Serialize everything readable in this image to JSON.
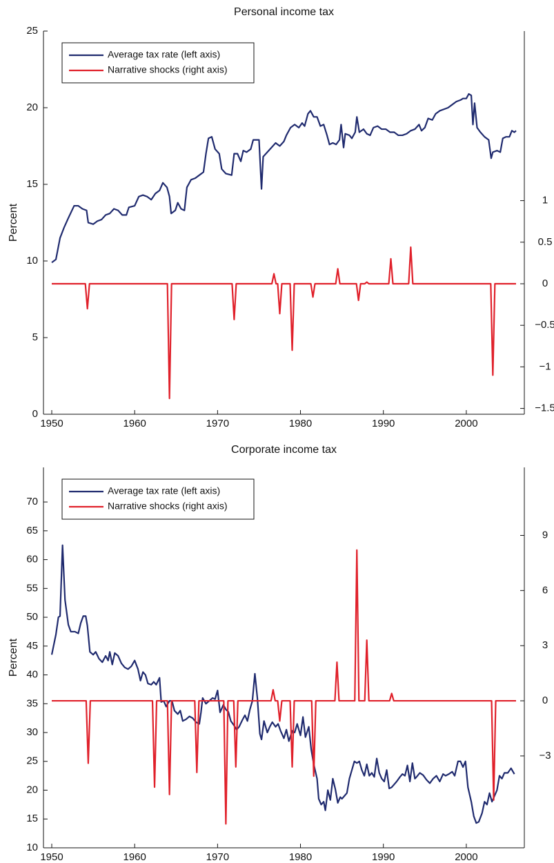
{
  "chart_data": [
    {
      "type": "line",
      "title": "Personal income tax",
      "y_label": "Percent",
      "legend": "upper left",
      "xlim": [
        1949,
        2007
      ],
      "xticks": [
        1950,
        1960,
        1970,
        1980,
        1990,
        2000
      ],
      "ylim": [
        0,
        25
      ],
      "yticks": [
        0,
        5,
        10,
        15,
        20,
        25
      ],
      "y2lim": [
        -1.57,
        3.04
      ],
      "y2ticks": [
        {
          "value": -1.5,
          "label": "−1.5"
        },
        {
          "value": -1,
          "label": "−1"
        },
        {
          "value": -0.5,
          "label": "−0.5"
        },
        0,
        0.5,
        1
      ],
      "series": [
        {
          "name": "Average tax rate (left axis)",
          "color": "#1f2a6e",
          "axis": "y",
          "x": [
            1950,
            1950.5,
            1951,
            1951.5,
            1952,
            1952.7,
            1953.2,
            1953.7,
            1954.2,
            1954.4,
            1955,
            1955.5,
            1956,
            1956.5,
            1957,
            1957.5,
            1958,
            1958.5,
            1959,
            1959.3,
            1960,
            1960.5,
            1961,
            1961.5,
            1962,
            1962.5,
            1963,
            1963.4,
            1963.9,
            1964.2,
            1964.4,
            1964.9,
            1965.2,
            1965.6,
            1966,
            1966.3,
            1966.8,
            1967.3,
            1967.8,
            1968.3,
            1968.6,
            1968.9,
            1969.3,
            1969.7,
            1970.2,
            1970.5,
            1971,
            1971.7,
            1972,
            1972.4,
            1972.8,
            1973.1,
            1973.5,
            1974,
            1974.3,
            1975,
            1975.3,
            1975.5,
            1976,
            1976.5,
            1977,
            1977.5,
            1978,
            1978.3,
            1978.8,
            1979.3,
            1979.8,
            1980.2,
            1980.5,
            1980.9,
            1981.2,
            1981.6,
            1982,
            1982.4,
            1982.8,
            1983.2,
            1983.5,
            1983.9,
            1984.3,
            1984.7,
            1984.9,
            1985.2,
            1985.4,
            1985.9,
            1986.2,
            1986.6,
            1986.8,
            1987.1,
            1987.6,
            1988,
            1988.4,
            1988.8,
            1989.3,
            1989.8,
            1990.3,
            1990.8,
            1991.3,
            1991.8,
            1992.3,
            1992.8,
            1993.3,
            1993.8,
            1994.3,
            1994.6,
            1995,
            1995.4,
            1995.9,
            1996.3,
            1996.8,
            1997.3,
            1997.8,
            1998.3,
            1998.8,
            1999.3,
            1999.6,
            2000,
            2000.3,
            2000.6,
            2000.8,
            2001,
            2001.3,
            2001.7,
            2002.2,
            2002.7,
            2003,
            2003.2,
            2003.7,
            2004.1,
            2004.4,
            2004.8,
            2005.2,
            2005.5,
            2005.8,
            2006
          ],
          "values": [
            9.9,
            10.1,
            11.5,
            12.2,
            12.8,
            13.6,
            13.6,
            13.4,
            13.3,
            12.5,
            12.4,
            12.6,
            12.7,
            13.0,
            13.1,
            13.4,
            13.3,
            13.0,
            13.0,
            13.5,
            13.6,
            14.2,
            14.3,
            14.2,
            14.0,
            14.4,
            14.6,
            15.1,
            14.8,
            14.2,
            13.1,
            13.3,
            13.8,
            13.4,
            13.3,
            14.8,
            15.3,
            15.4,
            15.6,
            15.8,
            17.0,
            18.0,
            18.1,
            17.3,
            17.0,
            16.0,
            15.7,
            15.6,
            17.0,
            17.0,
            16.5,
            17.2,
            17.1,
            17.3,
            17.9,
            17.9,
            14.7,
            16.8,
            17.1,
            17.4,
            17.7,
            17.5,
            17.8,
            18.2,
            18.7,
            18.9,
            18.7,
            19.0,
            18.8,
            19.6,
            19.8,
            19.4,
            19.4,
            18.8,
            18.9,
            18.2,
            17.6,
            17.7,
            17.6,
            17.9,
            18.9,
            17.4,
            18.3,
            18.2,
            18.0,
            18.4,
            19.4,
            18.4,
            18.6,
            18.3,
            18.2,
            18.7,
            18.8,
            18.6,
            18.6,
            18.4,
            18.4,
            18.2,
            18.2,
            18.3,
            18.5,
            18.6,
            18.9,
            18.5,
            18.7,
            19.3,
            19.2,
            19.6,
            19.8,
            19.9,
            20.0,
            20.2,
            20.4,
            20.5,
            20.6,
            20.6,
            20.9,
            20.8,
            18.9,
            20.3,
            18.7,
            18.4,
            18.1,
            17.9,
            16.7,
            17.1,
            17.2,
            17.1,
            18.0,
            18.1,
            18.1,
            18.5,
            18.4,
            18.5
          ]
        },
        {
          "name": "Narrative shocks (right axis)",
          "color": "#e0202a",
          "axis": "y2",
          "x": [
            1950,
            1954.05,
            1954.3,
            1954.55,
            1963.95,
            1964.2,
            1964.45,
            1971.75,
            1972,
            1972.25,
            1976.55,
            1976.8,
            1977.05,
            1977.25,
            1977.5,
            1977.75,
            1978.75,
            1979,
            1979.25,
            1981.25,
            1981.5,
            1981.75,
            1984.25,
            1984.5,
            1984.75,
            1986.75,
            1987,
            1987.25,
            1987.75,
            1988,
            1988.25,
            1990.65,
            1990.9,
            1991.15,
            1993.05,
            1993.3,
            1993.55,
            2002.95,
            2003.2,
            2003.45,
            2006
          ],
          "values": [
            0,
            0,
            -0.3,
            0,
            0,
            -1.38,
            0,
            0,
            -0.43,
            0,
            0,
            0.12,
            0,
            0,
            -0.36,
            0,
            0,
            -0.8,
            0,
            0,
            -0.16,
            0,
            0,
            0.18,
            0,
            0,
            -0.2,
            0,
            0,
            0.02,
            0,
            0,
            0.3,
            0,
            0,
            0.44,
            0,
            0,
            -1.1,
            0,
            0
          ]
        }
      ]
    },
    {
      "type": "line",
      "title": "Corporate income tax",
      "y_label": "Percent",
      "legend": "upper left",
      "xlim": [
        1949,
        2007
      ],
      "xticks": [
        1950,
        1960,
        1970,
        1980,
        1990,
        2000
      ],
      "ylim": [
        10,
        76
      ],
      "yticks": [
        10,
        15,
        20,
        25,
        30,
        35,
        40,
        45,
        50,
        55,
        60,
        65,
        70
      ],
      "y2lim": [
        -8,
        12.7
      ],
      "y2ticks": [
        {
          "value": -3,
          "label": "−3"
        },
        0,
        3,
        6,
        9
      ],
      "series": [
        {
          "name": "Average tax rate (left axis)",
          "color": "#1f2a6e",
          "axis": "y",
          "x": [
            1950,
            1950.5,
            1950.8,
            1951,
            1951.3,
            1951.6,
            1952,
            1952.3,
            1952.8,
            1953.2,
            1953.5,
            1953.8,
            1954.1,
            1954.3,
            1954.6,
            1955,
            1955.3,
            1955.7,
            1956.1,
            1956.5,
            1956.8,
            1957,
            1957.3,
            1957.6,
            1958,
            1958.4,
            1958.8,
            1959.2,
            1959.6,
            1960,
            1960.4,
            1960.7,
            1961,
            1961.3,
            1961.6,
            1962,
            1962.3,
            1962.6,
            1963,
            1963.2,
            1963.5,
            1963.8,
            1964.2,
            1964.5,
            1964.8,
            1965.2,
            1965.5,
            1965.8,
            1966.2,
            1966.6,
            1967,
            1967.4,
            1967.8,
            1968,
            1968.2,
            1968.6,
            1969,
            1969.4,
            1969.7,
            1970,
            1970.3,
            1970.7,
            1971,
            1971.3,
            1971.6,
            1972,
            1972.3,
            1972.6,
            1973,
            1973.3,
            1973.6,
            1973.9,
            1974.2,
            1974.5,
            1974.8,
            1975.1,
            1975.3,
            1975.6,
            1976,
            1976.3,
            1976.6,
            1977,
            1977.3,
            1977.6,
            1978,
            1978.3,
            1978.6,
            1979,
            1979.3,
            1979.6,
            1980,
            1980.3,
            1980.6,
            1981,
            1981.3,
            1981.6,
            1982,
            1982.2,
            1982.5,
            1982.8,
            1983,
            1983.3,
            1983.6,
            1983.9,
            1984.2,
            1984.5,
            1984.8,
            1985,
            1985.3,
            1985.6,
            1985.9,
            1986.2,
            1986.5,
            1986.8,
            1987.1,
            1987.4,
            1987.7,
            1988,
            1988.3,
            1988.6,
            1988.9,
            1989.2,
            1989.5,
            1989.8,
            1990.1,
            1990.4,
            1990.7,
            1991,
            1991.3,
            1991.6,
            1992,
            1992.3,
            1992.6,
            1992.9,
            1993.2,
            1993.5,
            1993.8,
            1994,
            1994.4,
            1994.8,
            1995.2,
            1995.6,
            1996,
            1996.4,
            1996.8,
            1997.2,
            1997.5,
            1997.9,
            1998.3,
            1998.6,
            1999,
            1999.3,
            1999.6,
            1999.9,
            2000.2,
            2000.6,
            2000.9,
            2001.2,
            2001.5,
            2001.9,
            2002.2,
            2002.5,
            2002.8,
            2003.1,
            2003.4,
            2003.7,
            2004,
            2004.3,
            2004.6,
            2005,
            2005.4,
            2005.8
          ],
          "values": [
            43.5,
            47,
            50,
            50.2,
            62.5,
            53,
            48.7,
            47.5,
            47.5,
            47.2,
            49,
            50.2,
            50.2,
            48.5,
            44,
            43.5,
            44,
            42.8,
            42.2,
            43.3,
            42.5,
            44,
            41.8,
            43.8,
            43.3,
            42,
            41.3,
            41,
            41.5,
            42.5,
            41,
            39,
            40.5,
            40,
            38.5,
            38.3,
            38.8,
            38.3,
            39.5,
            35.3,
            35.5,
            34.5,
            35.5,
            35.5,
            33.8,
            33.2,
            33.8,
            32,
            32.3,
            32.8,
            32.5,
            31.8,
            31.5,
            33.5,
            36,
            35,
            35.5,
            36,
            35.8,
            37.3,
            33.5,
            34.8,
            34,
            33.6,
            32,
            31.2,
            30.5,
            31,
            32.2,
            33,
            32,
            34,
            35.5,
            40.2,
            36,
            29.8,
            28.8,
            32,
            30,
            31,
            31.8,
            31,
            31.5,
            30.3,
            29,
            30.5,
            28.5,
            30.3,
            30,
            31.5,
            29.5,
            32.7,
            29.2,
            31,
            27,
            24.5,
            22,
            18.5,
            17.5,
            18,
            16.5,
            20,
            18.3,
            22,
            20.2,
            17.8,
            18.8,
            18.5,
            19,
            19.5,
            22,
            23.5,
            25,
            24.7,
            25,
            23.5,
            22.5,
            24.5,
            22.5,
            23,
            22.3,
            25.5,
            23,
            22,
            21.5,
            23.5,
            20.3,
            20.5,
            21,
            21.5,
            22.3,
            22.8,
            22.5,
            24.3,
            21.5,
            24.7,
            22,
            22.3,
            23,
            22.6,
            21.8,
            21.2,
            22,
            22.5,
            21.5,
            22.8,
            22.5,
            22.8,
            23.2,
            22.5,
            25,
            25,
            24,
            25,
            20.5,
            18,
            15.5,
            14.3,
            14.5,
            16,
            18,
            17.5,
            19.5,
            18,
            19,
            20,
            22.5,
            22,
            23,
            23,
            23.8,
            22.8
          ]
        },
        {
          "name": "Narrative shocks (right axis)",
          "color": "#e0202a",
          "axis": "y2",
          "x": [
            1950,
            1954.15,
            1954.4,
            1954.65,
            1962.15,
            1962.4,
            1962.65,
            1963.95,
            1964.2,
            1964.45,
            1967.25,
            1967.5,
            1967.75,
            1970.75,
            1971,
            1971.25,
            1971.95,
            1972.2,
            1972.45,
            1976.45,
            1976.7,
            1976.95,
            1977.25,
            1977.5,
            1977.75,
            1978.75,
            1979,
            1979.25,
            1981.35,
            1981.6,
            1981.85,
            1984.15,
            1984.4,
            1984.65,
            1986.55,
            1986.8,
            1987.05,
            1987.75,
            1988,
            1988.25,
            1990.75,
            1991,
            1991.25,
            2003.05,
            2003.3,
            2003.55,
            2006
          ],
          "values": [
            0,
            0,
            -3.4,
            0,
            0,
            -4.7,
            0,
            0,
            -5.1,
            0,
            0,
            -3.9,
            0,
            0,
            -6.7,
            0,
            0,
            -3.6,
            0,
            0,
            0.6,
            0,
            0,
            -1.1,
            0,
            0,
            -3.6,
            0,
            0,
            -4.1,
            0,
            0,
            2.1,
            0,
            0,
            8.2,
            0,
            0,
            3.3,
            0,
            0,
            0.4,
            0,
            0,
            -5.4,
            0,
            0
          ]
        }
      ]
    }
  ]
}
